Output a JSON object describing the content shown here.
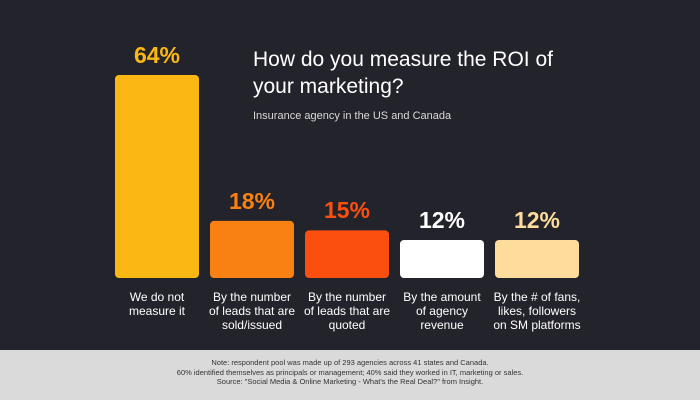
{
  "chart_data": {
    "type": "bar",
    "title": "How do you measure the ROI of your marketing?",
    "subtitle": "Insurance agency in the US and Canada",
    "categories": [
      "We do not measure it",
      "By the number of leads that are sold/issued",
      "By the number of leads that are quoted",
      "By the amount of agency revenue",
      "By the # of fans, likes, followers on SM platforms"
    ],
    "values": [
      64,
      18,
      15,
      12,
      12
    ],
    "value_labels": [
      "64%",
      "18%",
      "15%",
      "12%",
      "12%"
    ],
    "colors": [
      "#fbb713",
      "#f98012",
      "#fb4f10",
      "#ffffff",
      "#fedc9c"
    ],
    "note": [
      "Note: respondent pool was made up of 293 agencies across 41 states and Canada.",
      "60% identified themselves as principals or management; 40% said they worked in IT, marketing or sales.",
      "Source: \"Social Media & Online Marketing - What's the Real Deal?\" from Insight."
    ]
  }
}
